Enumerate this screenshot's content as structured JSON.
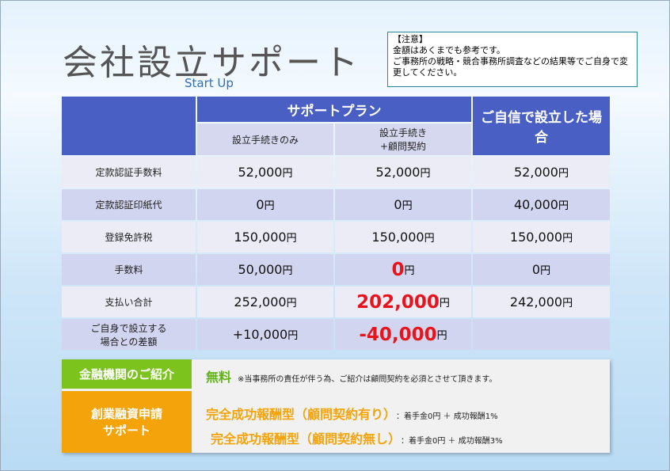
{
  "header": {
    "title": "会社設立サポート",
    "subtitle": "Start Up"
  },
  "notice": {
    "heading": "【注意】",
    "lines": [
      "金額はあくまでも参考です。",
      "ご事務所の戦略・競合事務所調査などの結果等でご自身で変更してください。"
    ]
  },
  "table": {
    "header": {
      "group": "サポートプラン",
      "plans": [
        "設立手続きのみ",
        "設立手続き\n+顧問契約"
      ],
      "self": "ご自信で設立した場合"
    },
    "rows": [
      {
        "label": "定款認証手数料",
        "cells": [
          {
            "amount": "52,000",
            "unit": "円"
          },
          {
            "amount": "52,000",
            "unit": "円"
          },
          {
            "amount": "52,000",
            "unit": "円"
          }
        ]
      },
      {
        "label": "定款認証印紙代",
        "cells": [
          {
            "amount": "0",
            "unit": "円"
          },
          {
            "amount": "0",
            "unit": "円"
          },
          {
            "amount": "40,000",
            "unit": "円"
          }
        ]
      },
      {
        "label": "登録免許税",
        "cells": [
          {
            "amount": "150,000",
            "unit": "円"
          },
          {
            "amount": "150,000",
            "unit": "円"
          },
          {
            "amount": "150,000",
            "unit": "円"
          }
        ]
      },
      {
        "label": "手数料",
        "cells": [
          {
            "amount": "50,000",
            "unit": "円"
          },
          {
            "amount": "0",
            "unit": "円",
            "highlight": true
          },
          {
            "amount": "0",
            "unit": "円"
          }
        ]
      },
      {
        "label": "支払い合計",
        "cells": [
          {
            "amount": "252,000",
            "unit": "円"
          },
          {
            "amount": "202,000",
            "unit": "円",
            "highlight": true
          },
          {
            "amount": "242,000",
            "unit": "円"
          }
        ]
      },
      {
        "label": "ご自身で設立する\n場合との差額",
        "cells": [
          {
            "amount": "+10,000",
            "unit": "円"
          },
          {
            "amount": "-40,000",
            "unit": "円",
            "highlight": true
          }
        ]
      }
    ]
  },
  "services": [
    {
      "label": "金融機関のご紹介",
      "lines": [
        {
          "main": "無料",
          "note": "※当事務所の責任が伴う為、ご紹介は顧問契約を必須とさせて頂きます。"
        }
      ]
    },
    {
      "label": "創業融資申請\nサポート",
      "lines": [
        {
          "main": "完全成功報酬型（顧問契約有り）",
          "note": "：着手金0円 ＋ 成功報酬1%"
        },
        {
          "main": "完全成功報酬型（顧問契約無し）",
          "note": "：着手金0円 ＋ 成功報酬3%"
        }
      ]
    }
  ]
}
